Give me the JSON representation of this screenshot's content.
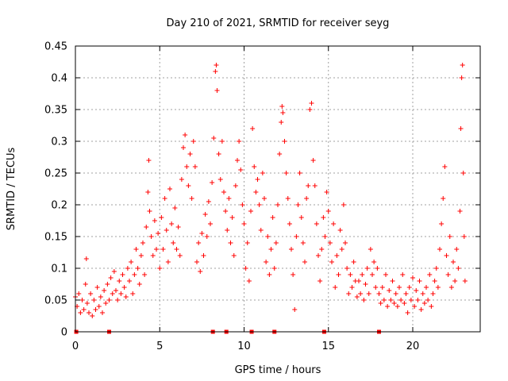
{
  "chart_data": {
    "type": "scatter",
    "title": "Day 210 of 2021, SRMTID for receiver seyg",
    "xlabel": "GPS time / hours",
    "ylabel": "SRMTID / TECUs",
    "xlim": [
      0,
      24
    ],
    "ylim": [
      0,
      0.45
    ],
    "xticks": [
      0,
      5,
      10,
      15,
      20
    ],
    "yticks": [
      0,
      0.05,
      0.1,
      0.15,
      0.2,
      0.25,
      0.3,
      0.35,
      0.4,
      0.45
    ],
    "xtick_labels": [
      "0",
      "5",
      "10",
      "15",
      "20"
    ],
    "ytick_labels": [
      "0",
      "0.05",
      "0.1",
      "0.15",
      "0.2",
      "0.25",
      "0.3",
      "0.35",
      "0.4",
      "0.45"
    ],
    "grid": true,
    "marker": "+",
    "color": "#ff0000",
    "baseline_markers_x": [
      0.05,
      2.0,
      8.15,
      8.95,
      10.45,
      11.8,
      14.75,
      18.0
    ],
    "series": [
      {
        "name": "SRMTID",
        "points": [
          [
            0.0,
            0.055
          ],
          [
            0.1,
            0.04
          ],
          [
            0.2,
            0.06
          ],
          [
            0.3,
            0.03
          ],
          [
            0.4,
            0.05
          ],
          [
            0.5,
            0.035
          ],
          [
            0.6,
            0.075
          ],
          [
            0.65,
            0.115
          ],
          [
            0.7,
            0.045
          ],
          [
            0.8,
            0.03
          ],
          [
            0.9,
            0.06
          ],
          [
            1.0,
            0.025
          ],
          [
            1.1,
            0.05
          ],
          [
            1.2,
            0.035
          ],
          [
            1.3,
            0.07
          ],
          [
            1.4,
            0.04
          ],
          [
            1.5,
            0.055
          ],
          [
            1.6,
            0.03
          ],
          [
            1.7,
            0.065
          ],
          [
            1.8,
            0.045
          ],
          [
            1.9,
            0.075
          ],
          [
            2.0,
            0.05
          ],
          [
            2.1,
            0.085
          ],
          [
            2.2,
            0.06
          ],
          [
            2.3,
            0.095
          ],
          [
            2.4,
            0.065
          ],
          [
            2.5,
            0.05
          ],
          [
            2.6,
            0.08
          ],
          [
            2.7,
            0.06
          ],
          [
            2.8,
            0.09
          ],
          [
            2.9,
            0.07
          ],
          [
            3.0,
            0.055
          ],
          [
            3.1,
            0.1
          ],
          [
            3.2,
            0.08
          ],
          [
            3.3,
            0.11
          ],
          [
            3.4,
            0.06
          ],
          [
            3.5,
            0.09
          ],
          [
            3.6,
            0.13
          ],
          [
            3.7,
            0.1
          ],
          [
            3.8,
            0.075
          ],
          [
            3.9,
            0.12
          ],
          [
            4.0,
            0.14
          ],
          [
            4.1,
            0.09
          ],
          [
            4.2,
            0.165
          ],
          [
            4.3,
            0.22
          ],
          [
            4.35,
            0.27
          ],
          [
            4.4,
            0.19
          ],
          [
            4.5,
            0.15
          ],
          [
            4.6,
            0.12
          ],
          [
            4.7,
            0.175
          ],
          [
            4.8,
            0.13
          ],
          [
            4.9,
            0.155
          ],
          [
            5.0,
            0.1
          ],
          [
            5.1,
            0.18
          ],
          [
            5.2,
            0.13
          ],
          [
            5.3,
            0.21
          ],
          [
            5.4,
            0.16
          ],
          [
            5.5,
            0.11
          ],
          [
            5.6,
            0.225
          ],
          [
            5.7,
            0.17
          ],
          [
            5.8,
            0.14
          ],
          [
            5.9,
            0.195
          ],
          [
            6.0,
            0.13
          ],
          [
            6.1,
            0.165
          ],
          [
            6.2,
            0.12
          ],
          [
            6.3,
            0.24
          ],
          [
            6.4,
            0.29
          ],
          [
            6.5,
            0.31
          ],
          [
            6.6,
            0.26
          ],
          [
            6.7,
            0.23
          ],
          [
            6.8,
            0.28
          ],
          [
            6.9,
            0.21
          ],
          [
            7.0,
            0.3
          ],
          [
            7.1,
            0.26
          ],
          [
            7.2,
            0.11
          ],
          [
            7.3,
            0.14
          ],
          [
            7.4,
            0.095
          ],
          [
            7.5,
            0.155
          ],
          [
            7.6,
            0.12
          ],
          [
            7.7,
            0.185
          ],
          [
            7.8,
            0.15
          ],
          [
            7.9,
            0.205
          ],
          [
            8.0,
            0.17
          ],
          [
            8.1,
            0.235
          ],
          [
            8.2,
            0.305
          ],
          [
            8.3,
            0.41
          ],
          [
            8.35,
            0.42
          ],
          [
            8.4,
            0.38
          ],
          [
            8.5,
            0.28
          ],
          [
            8.6,
            0.24
          ],
          [
            8.7,
            0.3
          ],
          [
            8.8,
            0.22
          ],
          [
            8.9,
            0.19
          ],
          [
            9.0,
            0.16
          ],
          [
            9.1,
            0.21
          ],
          [
            9.2,
            0.14
          ],
          [
            9.3,
            0.18
          ],
          [
            9.4,
            0.12
          ],
          [
            9.5,
            0.23
          ],
          [
            9.6,
            0.27
          ],
          [
            9.7,
            0.3
          ],
          [
            9.8,
            0.255
          ],
          [
            9.9,
            0.2
          ],
          [
            10.0,
            0.17
          ],
          [
            10.1,
            0.1
          ],
          [
            10.2,
            0.14
          ],
          [
            10.3,
            0.08
          ],
          [
            10.4,
            0.19
          ],
          [
            10.5,
            0.32
          ],
          [
            10.6,
            0.26
          ],
          [
            10.7,
            0.22
          ],
          [
            10.8,
            0.24
          ],
          [
            10.9,
            0.2
          ],
          [
            11.0,
            0.16
          ],
          [
            11.1,
            0.25
          ],
          [
            11.2,
            0.21
          ],
          [
            11.3,
            0.11
          ],
          [
            11.4,
            0.15
          ],
          [
            11.5,
            0.09
          ],
          [
            11.6,
            0.13
          ],
          [
            11.7,
            0.18
          ],
          [
            11.8,
            0.1
          ],
          [
            11.9,
            0.14
          ],
          [
            12.0,
            0.2
          ],
          [
            12.1,
            0.28
          ],
          [
            12.2,
            0.33
          ],
          [
            12.25,
            0.355
          ],
          [
            12.3,
            0.345
          ],
          [
            12.4,
            0.3
          ],
          [
            12.5,
            0.25
          ],
          [
            12.6,
            0.21
          ],
          [
            12.7,
            0.17
          ],
          [
            12.8,
            0.13
          ],
          [
            12.9,
            0.09
          ],
          [
            13.0,
            0.035
          ],
          [
            13.1,
            0.15
          ],
          [
            13.2,
            0.2
          ],
          [
            13.3,
            0.25
          ],
          [
            13.4,
            0.18
          ],
          [
            13.5,
            0.14
          ],
          [
            13.6,
            0.11
          ],
          [
            13.7,
            0.21
          ],
          [
            13.8,
            0.23
          ],
          [
            13.9,
            0.35
          ],
          [
            14.0,
            0.36
          ],
          [
            14.1,
            0.27
          ],
          [
            14.2,
            0.23
          ],
          [
            14.3,
            0.17
          ],
          [
            14.4,
            0.12
          ],
          [
            14.5,
            0.08
          ],
          [
            14.6,
            0.13
          ],
          [
            14.7,
            0.18
          ],
          [
            14.8,
            0.15
          ],
          [
            14.9,
            0.22
          ],
          [
            15.0,
            0.19
          ],
          [
            15.1,
            0.14
          ],
          [
            15.2,
            0.11
          ],
          [
            15.3,
            0.17
          ],
          [
            15.4,
            0.07
          ],
          [
            15.5,
            0.12
          ],
          [
            15.6,
            0.09
          ],
          [
            15.7,
            0.16
          ],
          [
            15.8,
            0.13
          ],
          [
            15.9,
            0.2
          ],
          [
            16.0,
            0.14
          ],
          [
            16.1,
            0.1
          ],
          [
            16.2,
            0.06
          ],
          [
            16.3,
            0.09
          ],
          [
            16.4,
            0.07
          ],
          [
            16.5,
            0.11
          ],
          [
            16.6,
            0.08
          ],
          [
            16.7,
            0.055
          ],
          [
            16.8,
            0.08
          ],
          [
            16.9,
            0.06
          ],
          [
            17.0,
            0.09
          ],
          [
            17.1,
            0.05
          ],
          [
            17.2,
            0.075
          ],
          [
            17.3,
            0.1
          ],
          [
            17.4,
            0.06
          ],
          [
            17.5,
            0.13
          ],
          [
            17.6,
            0.09
          ],
          [
            17.7,
            0.11
          ],
          [
            17.8,
            0.07
          ],
          [
            17.9,
            0.1
          ],
          [
            18.0,
            0.06
          ],
          [
            18.1,
            0.045
          ],
          [
            18.2,
            0.07
          ],
          [
            18.3,
            0.05
          ],
          [
            18.4,
            0.09
          ],
          [
            18.5,
            0.04
          ],
          [
            18.6,
            0.065
          ],
          [
            18.7,
            0.05
          ],
          [
            18.8,
            0.08
          ],
          [
            18.9,
            0.045
          ],
          [
            19.0,
            0.06
          ],
          [
            19.1,
            0.04
          ],
          [
            19.2,
            0.07
          ],
          [
            19.3,
            0.05
          ],
          [
            19.4,
            0.09
          ],
          [
            19.5,
            0.045
          ],
          [
            19.6,
            0.06
          ],
          [
            19.7,
            0.03
          ],
          [
            19.8,
            0.07
          ],
          [
            19.9,
            0.05
          ],
          [
            20.0,
            0.085
          ],
          [
            20.1,
            0.04
          ],
          [
            20.2,
            0.065
          ],
          [
            20.3,
            0.05
          ],
          [
            20.4,
            0.08
          ],
          [
            20.5,
            0.035
          ],
          [
            20.6,
            0.06
          ],
          [
            20.7,
            0.045
          ],
          [
            20.8,
            0.07
          ],
          [
            20.9,
            0.05
          ],
          [
            21.0,
            0.09
          ],
          [
            21.1,
            0.04
          ],
          [
            21.2,
            0.06
          ],
          [
            21.3,
            0.08
          ],
          [
            21.4,
            0.1
          ],
          [
            21.5,
            0.07
          ],
          [
            21.6,
            0.13
          ],
          [
            21.7,
            0.17
          ],
          [
            21.8,
            0.21
          ],
          [
            21.9,
            0.26
          ],
          [
            22.0,
            0.12
          ],
          [
            22.1,
            0.09
          ],
          [
            22.2,
            0.15
          ],
          [
            22.3,
            0.07
          ],
          [
            22.4,
            0.11
          ],
          [
            22.5,
            0.08
          ],
          [
            22.6,
            0.13
          ],
          [
            22.7,
            0.1
          ],
          [
            22.8,
            0.19
          ],
          [
            22.85,
            0.32
          ],
          [
            22.9,
            0.4
          ],
          [
            22.95,
            0.42
          ],
          [
            23.0,
            0.25
          ],
          [
            23.05,
            0.15
          ],
          [
            23.1,
            0.08
          ]
        ]
      }
    ]
  }
}
